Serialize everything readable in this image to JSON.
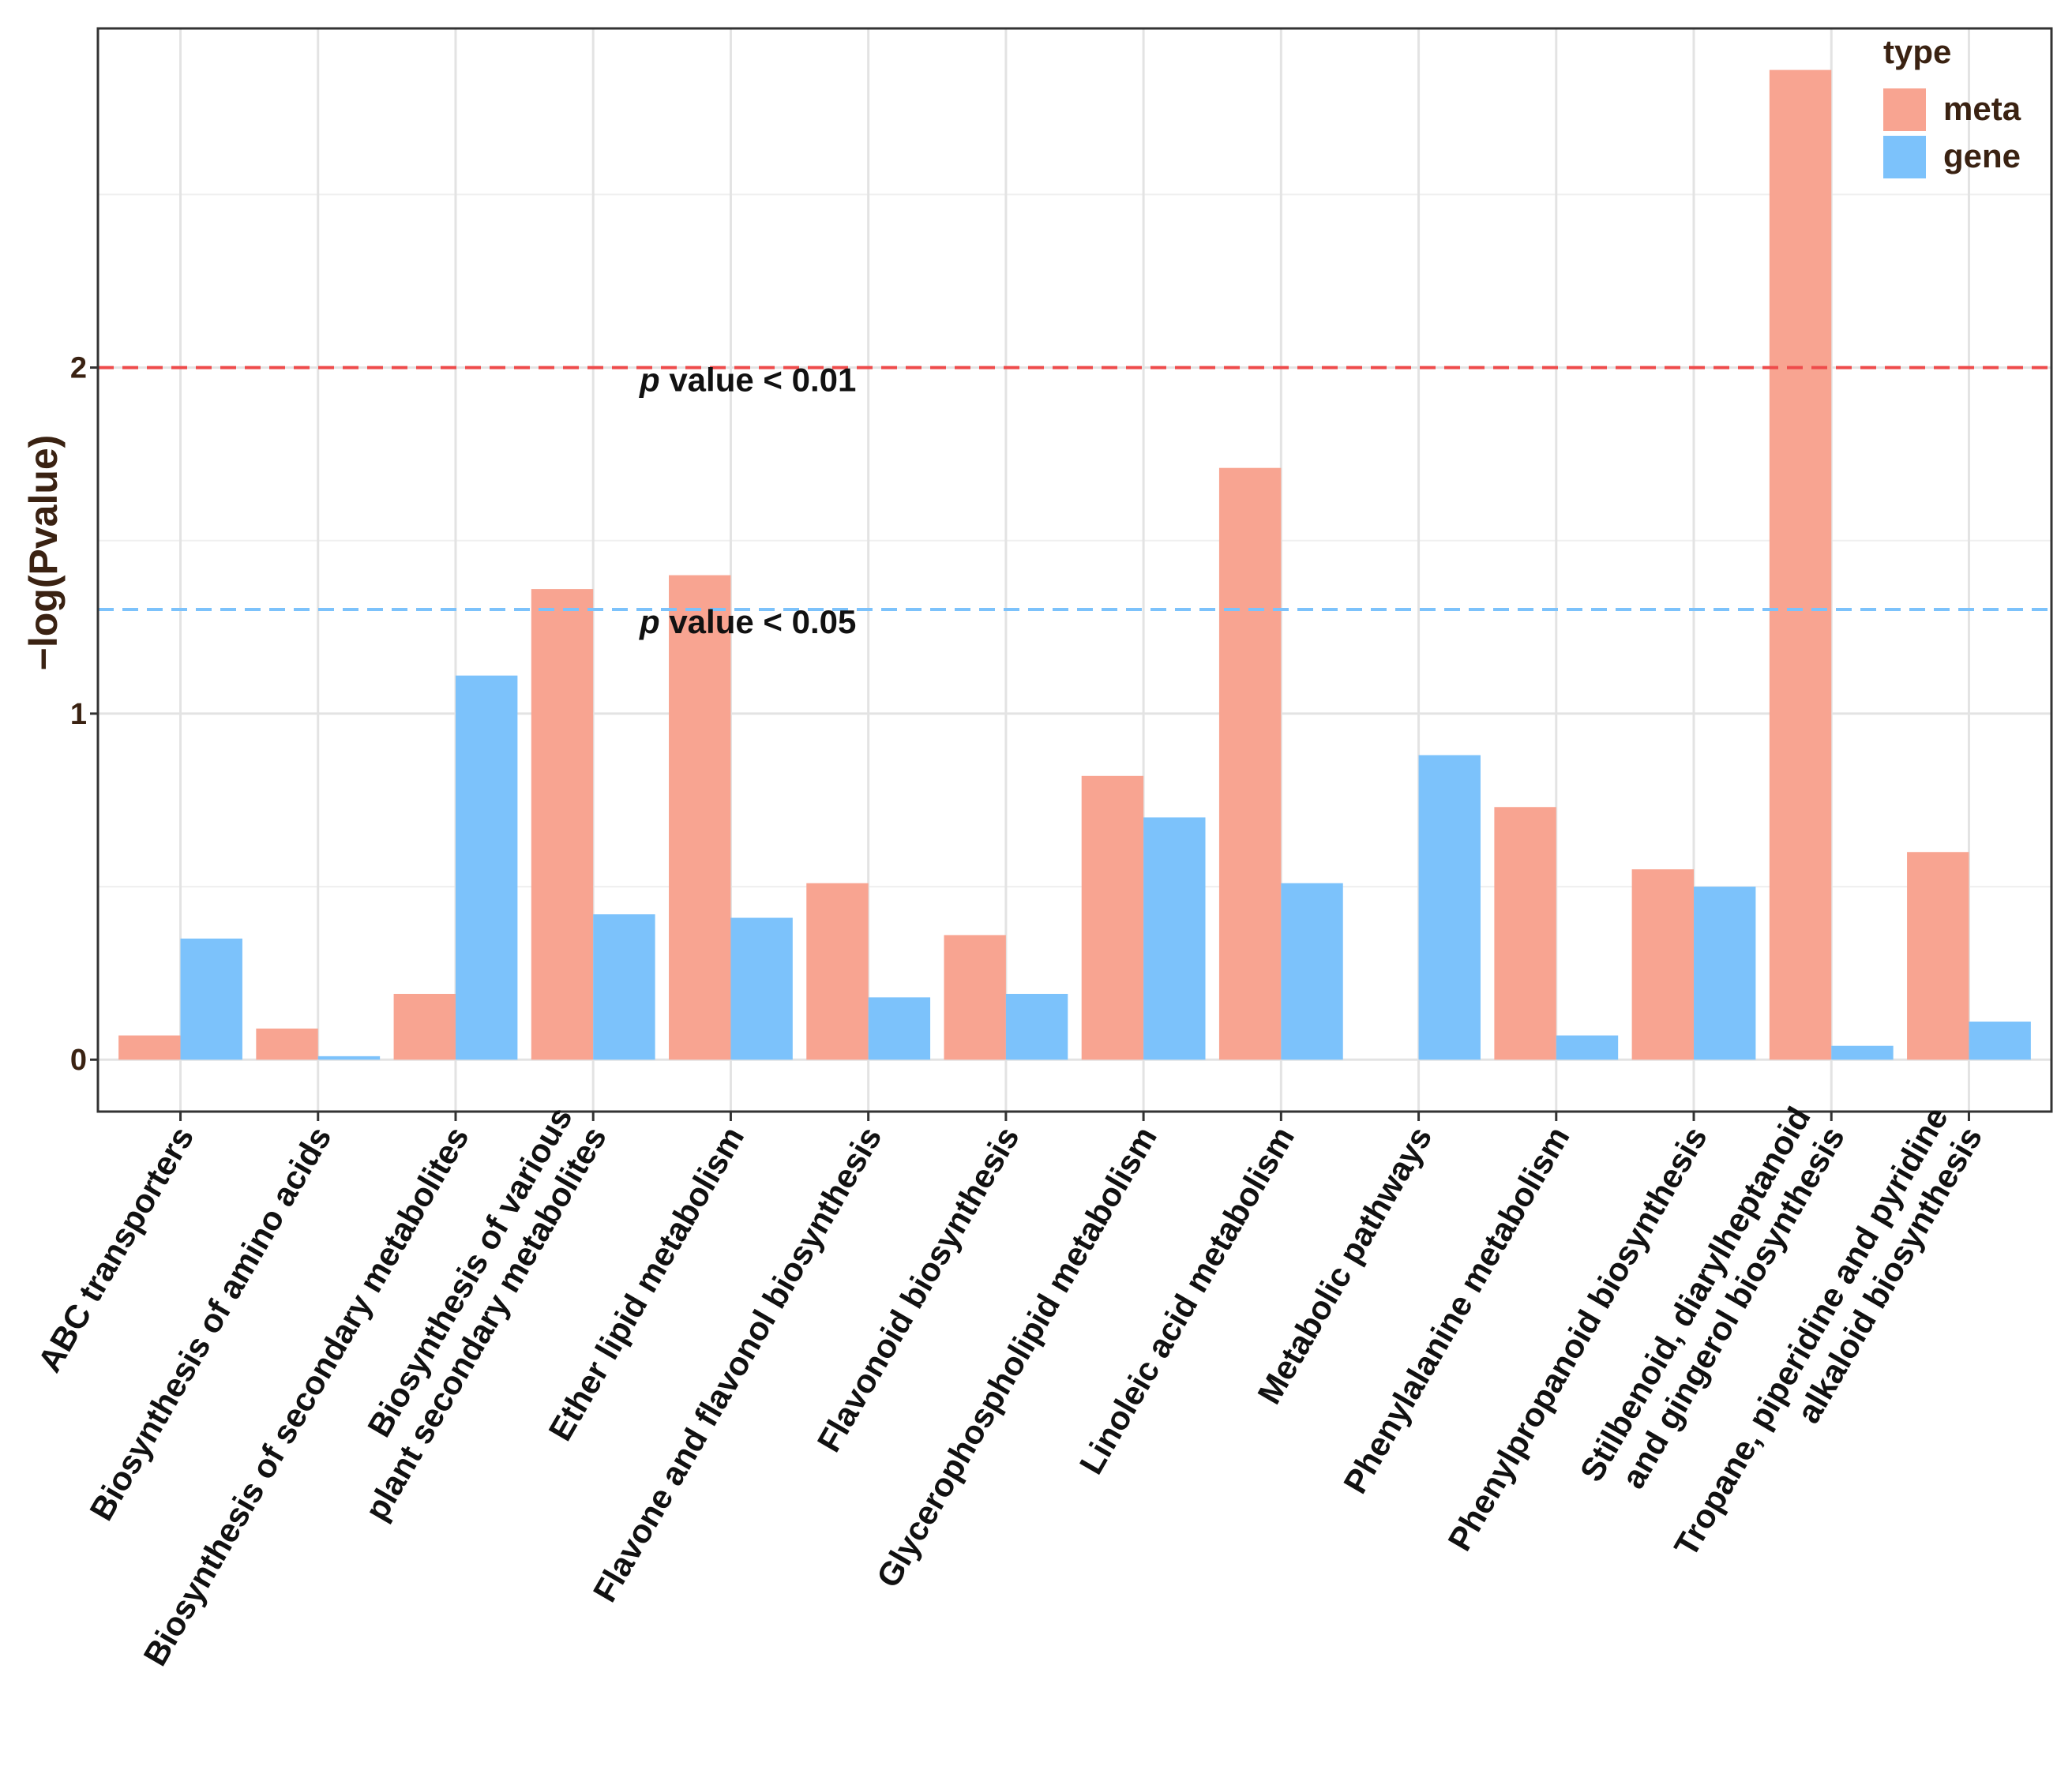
{
  "chart_data": {
    "type": "bar",
    "title": "",
    "xlabel": "",
    "ylabel": "−log(Pvalue)",
    "ylim": [
      -0.15,
      2.98
    ],
    "yticks": [
      0,
      1,
      2
    ],
    "grid": true,
    "legend": {
      "title": "type",
      "position": "top-right"
    },
    "categories": [
      "ABC transporters",
      "Biosynthesis of amino acids",
      "Biosynthesis of secondary metabolites",
      "Biosynthesis of various\nplant secondary metabolites",
      "Ether lipid metabolism",
      "Flavone and flavonol biosynthesis",
      "Flavonoid biosynthesis",
      "Glycerophospholipid metabolism",
      "Linoleic acid metabolism",
      "Metabolic pathways",
      "Phenylalanine metabolism",
      "Phenylpropanoid biosynthesis",
      "Stilbenoid, diarylheptanoid\nand gingerol biosynthesis",
      "Tropane, piperidine and pyridine\nalkaloid biosynthesis"
    ],
    "series": [
      {
        "name": "meta",
        "color": "#F8A491",
        "values": [
          0.07,
          0.09,
          0.19,
          1.36,
          1.4,
          0.51,
          0.36,
          0.82,
          1.71,
          0.0,
          0.73,
          0.55,
          2.86,
          0.6
        ]
      },
      {
        "name": "gene",
        "color": "#7CC2FB",
        "values": [
          0.35,
          0.01,
          1.11,
          0.42,
          0.41,
          0.18,
          0.19,
          0.7,
          0.51,
          0.88,
          0.07,
          0.5,
          0.04,
          0.11
        ]
      }
    ],
    "thresholds": [
      {
        "value": 2.0,
        "color": "#EE4B4B",
        "prefix": "p",
        "text": " value < 0.01"
      },
      {
        "value": 1.301,
        "color": "#7CC2FB",
        "prefix": "p",
        "text": " value < 0.05"
      }
    ]
  }
}
